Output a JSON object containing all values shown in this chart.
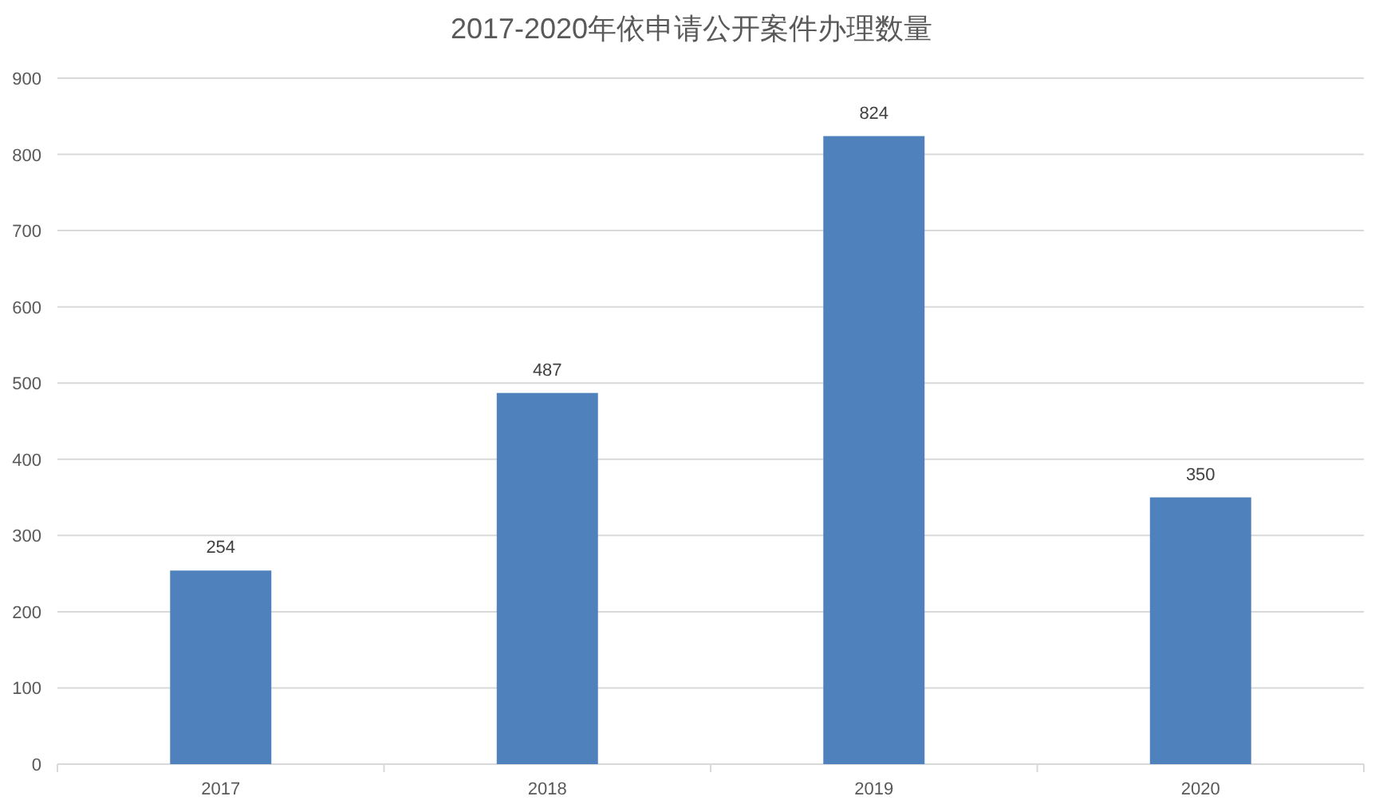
{
  "chart_data": {
    "type": "bar",
    "title": "2017-2020年依申请公开案件办理数量",
    "categories": [
      "2017",
      "2018",
      "2019",
      "2020"
    ],
    "values": [
      254,
      487,
      824,
      350
    ],
    "color": "#4f81bd",
    "ylim": [
      0,
      900
    ],
    "yticks": [
      0,
      100,
      200,
      300,
      400,
      500,
      600,
      700,
      800,
      900
    ],
    "grid": "y",
    "data_labels": true
  }
}
